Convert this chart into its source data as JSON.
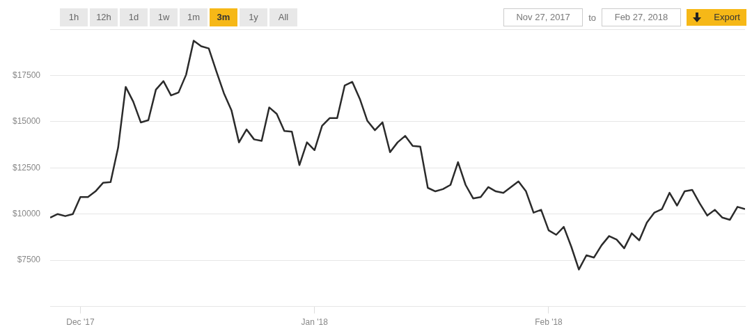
{
  "chart_data": {
    "type": "line",
    "annotations": [
      "1h",
      "12h",
      "1d",
      "1w",
      "1m",
      "3m",
      "1y",
      "All",
      "Nov 27, 2017",
      "to",
      "Feb 27, 2018",
      "Export"
    ],
    "x": [
      "2017-11-27",
      "2017-11-28",
      "2017-11-29",
      "2017-11-30",
      "2017-12-01",
      "2017-12-02",
      "2017-12-03",
      "2017-12-04",
      "2017-12-05",
      "2017-12-06",
      "2017-12-07",
      "2017-12-08",
      "2017-12-09",
      "2017-12-10",
      "2017-12-11",
      "2017-12-12",
      "2017-12-13",
      "2017-12-14",
      "2017-12-15",
      "2017-12-16",
      "2017-12-17",
      "2017-12-18",
      "2017-12-19",
      "2017-12-20",
      "2017-12-21",
      "2017-12-22",
      "2017-12-23",
      "2017-12-24",
      "2017-12-25",
      "2017-12-26",
      "2017-12-27",
      "2017-12-28",
      "2017-12-29",
      "2017-12-30",
      "2017-12-31",
      "2018-01-01",
      "2018-01-02",
      "2018-01-03",
      "2018-01-04",
      "2018-01-05",
      "2018-01-06",
      "2018-01-07",
      "2018-01-08",
      "2018-01-09",
      "2018-01-10",
      "2018-01-11",
      "2018-01-12",
      "2018-01-13",
      "2018-01-14",
      "2018-01-15",
      "2018-01-16",
      "2018-01-17",
      "2018-01-18",
      "2018-01-19",
      "2018-01-20",
      "2018-01-21",
      "2018-01-22",
      "2018-01-23",
      "2018-01-24",
      "2018-01-25",
      "2018-01-26",
      "2018-01-27",
      "2018-01-28",
      "2018-01-29",
      "2018-01-30",
      "2018-01-31",
      "2018-02-01",
      "2018-02-02",
      "2018-02-03",
      "2018-02-04",
      "2018-02-05",
      "2018-02-06",
      "2018-02-07",
      "2018-02-08",
      "2018-02-09",
      "2018-02-10",
      "2018-02-11",
      "2018-02-12",
      "2018-02-13",
      "2018-02-14",
      "2018-02-15",
      "2018-02-16",
      "2018-02-17",
      "2018-02-18",
      "2018-02-19",
      "2018-02-20",
      "2018-02-21",
      "2018-02-22",
      "2018-02-23",
      "2018-02-24",
      "2018-02-25",
      "2018-02-26",
      "2018-02-27"
    ],
    "series": [
      {
        "color": "#2b2b2b",
        "values": [
          9810,
          10000,
          9890,
          10000,
          10920,
          10920,
          11230,
          11690,
          11730,
          13600,
          16880,
          16080,
          14960,
          15080,
          16730,
          17190,
          16420,
          16580,
          17540,
          19380,
          19080,
          18960,
          17730,
          16540,
          15620,
          13880,
          14580,
          14040,
          13960,
          15770,
          15420,
          14500,
          14460,
          12650,
          13880,
          13460,
          14770,
          15190,
          15190,
          16960,
          17150,
          16230,
          15040,
          14540,
          14960,
          13350,
          13880,
          14230,
          13690,
          13650,
          11420,
          11230,
          11350,
          11580,
          12810,
          11580,
          10850,
          10920,
          11460,
          11230,
          11150,
          11460,
          11770,
          11230,
          10080,
          10230,
          9120,
          8880,
          9310,
          8230,
          7000,
          7770,
          7650,
          8310,
          8810,
          8620,
          8150,
          8960,
          8580,
          9540,
          10080,
          10270,
          11150,
          10460,
          11230,
          11310,
          10580,
          9920,
          10230,
          9810,
          9690,
          10390,
          10270
        ]
      }
    ],
    "xlim": [
      "2017-11-27",
      "2018-02-27"
    ],
    "xticks": [
      {
        "value": "2017-12-01",
        "label": "Dec '17"
      },
      {
        "value": "2018-01-01",
        "label": "Jan '18"
      },
      {
        "value": "2018-02-01",
        "label": "Feb '18"
      }
    ],
    "ylim": [
      5000,
      20000
    ],
    "yticks": [
      {
        "value": 7500,
        "label": "$7500"
      },
      {
        "value": 10000,
        "label": "$10000"
      },
      {
        "value": 12500,
        "label": "$12500"
      },
      {
        "value": 15000,
        "label": "$15000"
      },
      {
        "value": 17500,
        "label": "$17500"
      },
      {
        "value": 20000,
        "label": null
      }
    ],
    "grid": "y",
    "legend": false,
    "marker": "none",
    "line_style": "solid"
  }
}
